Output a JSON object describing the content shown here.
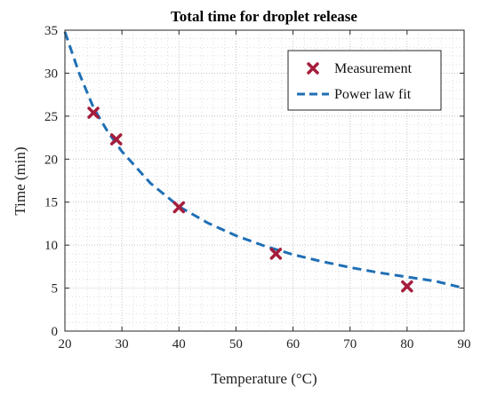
{
  "chart_data": {
    "type": "scatter",
    "title": "Total time for droplet release",
    "xlabel": "Temperature (°C)",
    "ylabel": "Time (min)",
    "xlim": [
      20,
      90
    ],
    "ylim": [
      0,
      35
    ],
    "xticks": [
      20,
      30,
      40,
      50,
      60,
      70,
      80,
      90
    ],
    "yticks": [
      0,
      5,
      10,
      15,
      20,
      25,
      30,
      35
    ],
    "grid": "minor dotted",
    "legend_position": "top-right",
    "series": [
      {
        "name": "Measurement",
        "kind": "scatter",
        "color": "#a51d3c",
        "x": [
          25,
          29,
          40,
          57,
          80
        ],
        "y": [
          25.4,
          22.3,
          14.4,
          9.0,
          5.2
        ]
      },
      {
        "name": "Power law fit",
        "kind": "line",
        "color": "#1f6fb5",
        "x": [
          20,
          22.5,
          25,
          27.5,
          30,
          35,
          40,
          45,
          50,
          55,
          60,
          65,
          70,
          75,
          80,
          85,
          90
        ],
        "y": [
          34.8,
          30.0,
          26.0,
          23.2,
          20.9,
          17.2,
          14.5,
          12.6,
          11.1,
          9.9,
          8.9,
          8.1,
          7.4,
          6.8,
          6.3,
          5.8,
          5.0
        ]
      }
    ]
  }
}
